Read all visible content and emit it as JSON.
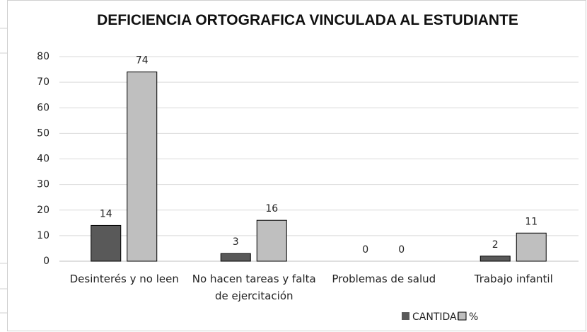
{
  "chart_data": {
    "type": "bar",
    "title": "DEFICIENCIA ORTOGRAFICA VINCULADA AL ESTUDIANTE",
    "categories": [
      "Desinterés y no leen",
      "No hacen tareas y falta de ejercitación",
      "Problemas de salud",
      "Trabajo infantil"
    ],
    "series": [
      {
        "name": "CANTIDAD",
        "color": "#595959",
        "values": [
          14,
          3,
          0,
          2
        ]
      },
      {
        "name": "%",
        "color": "#bfbfbf",
        "values": [
          74,
          16,
          0,
          11
        ]
      }
    ],
    "ylim": [
      0,
      80
    ],
    "yticks": [
      0,
      10,
      20,
      30,
      40,
      50,
      60,
      70,
      80
    ],
    "grid": true,
    "legend": "bottom"
  }
}
